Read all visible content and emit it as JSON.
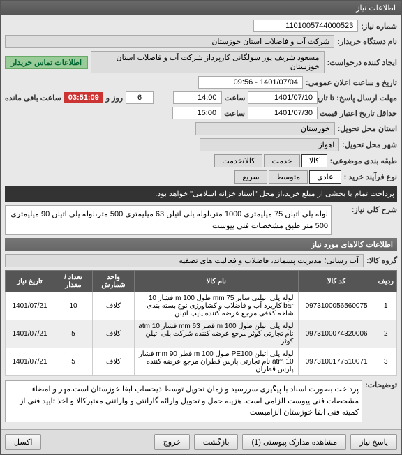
{
  "title": "اطلاعات نیاز",
  "labels": {
    "need_no": "شماره نیاز:",
    "org": "نام دستگاه خریدار:",
    "creator": "ایجاد کننده درخواست:",
    "deadline": "مهلت ارسال پاسخ: تا تاریخ:",
    "validity": "حداقل تاریخ اعتبار قیمت تا تاریخ:",
    "province": "استان محل تحویل:",
    "city": "شهر محل تحویل:",
    "packaging": "طبقه بندی موضوعی:",
    "process": "نوع فرآیند خرید :",
    "announce": "تاریخ و ساعت اعلان عمومی:",
    "contact": "اطلاعات تماس خریدار",
    "time_word": "ساعت",
    "day_and": "روز و",
    "remain": "ساعت باقی مانده",
    "desc_hdr": "شرح کلی نیاز:",
    "items_hdr": "اطلاعات کالاهای مورد نیاز",
    "group": "گروه کالا:",
    "notes": "توضیحات:"
  },
  "values": {
    "need_no": "1101005744000523",
    "org": "شرکت آب و فاضلاب استان خوزستان",
    "creator": "مسعود شریف پور سولگانی کارپرداز شرکت آب و فاضلاب استان خوزستان",
    "announce": "1401/07/04 - 09:56",
    "deadline_date": "1401/07/10",
    "deadline_time": "14:00",
    "days": "6",
    "countdown": "03:51:09",
    "validity_date": "1401/07/30",
    "validity_time": "15:00",
    "province": "خوزستان",
    "city": "اهواز",
    "group": "آب رسانی؛ مدیریت پسماند، فاضلاب و فعالیت های تصفیه"
  },
  "packaging_opts": [
    "کالا",
    "خدمت",
    "کالا/خدمت"
  ],
  "packaging_sel": 0,
  "process_opts": [
    "عادی",
    "متوسط",
    "سریع"
  ],
  "process_sel": 0,
  "dark_text": "پرداخت تمام یا بخشی از مبلغ خرید،از محل \"اسناد خزانه اسلامی\" خواهد بود.",
  "description": "لوله پلی اتیلن 75 میلیمتری 1000 متر،لوله پلی اتیلن 63 میلیمتری 500 متر،لوله پلی اتیلن 90 میلیمتری 500 متر طبق مشخصات فنی پیوست",
  "table": {
    "headers": [
      "ردیف",
      "کد کالا",
      "نام کالا",
      "واحد شمارش",
      "تعداد / مقدار",
      "تاریخ نیاز"
    ],
    "rows": [
      {
        "n": "1",
        "code": "0973100056560075",
        "name": "لوله پلی اتیلنی سایز 75 mm طول 100 m فشار 10 bar کاربرد آب و فاضلاب و کشاورزی نوع بسته بندی شاخه کلافی مرجع عرضه کننده پایپ اتیلن",
        "unit": "کلاف",
        "qty": "10",
        "date": "1401/07/21"
      },
      {
        "n": "2",
        "code": "0973100074320006",
        "name": "لوله پلی اتیلن طول 100 m قطر 63 mm فشار 10 atm نام تجارتی کوثر مرجع عرضه کننده شرکت پلی اتیلن کوثر",
        "unit": "کلاف",
        "qty": "5",
        "date": "1401/07/21"
      },
      {
        "n": "3",
        "code": "0973100177510071",
        "name": "لوله پلی اتیلن PE100 طول 100 m قطر 90 mm فشار 10 atm نام تجارتی پارس قطران مرجع عرضه کننده پارس قطران",
        "unit": "کلاف",
        "qty": "5",
        "date": "1401/07/21"
      }
    ]
  },
  "notes": "پرداخت بصورت اسناد با پیگیری  سررسید و زمان تحویل توسط ذیحساب آبفا خوزستان است.مهر و امضاء مشخصات فنی پیوست الزامی است. هزینه حمل و تحویل وارائه گارانتی و واراتنی معتبرکالا و اخذ تایید فنی از کمیته فنی ابفا خوزستان الزامیست",
  "buttons": {
    "reply": "پاسخ نیاز",
    "attach": "مشاهده مدارک پیوستی (1)",
    "back": "بازگشت",
    "exit": "خروج",
    "excel": "اکسل"
  },
  "colors": {
    "titlebar": "#606060",
    "header": "#555",
    "accent": "#9c9",
    "countdown": "#c33"
  }
}
